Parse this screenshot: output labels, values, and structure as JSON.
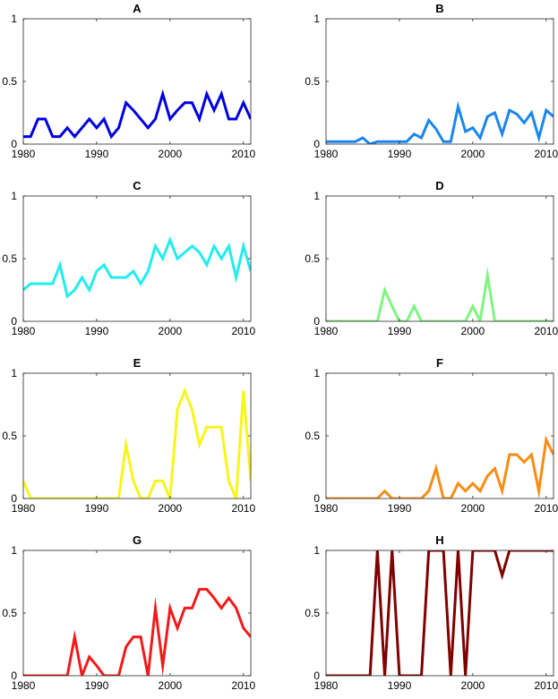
{
  "chart_data": [
    {
      "type": "line",
      "title": "A",
      "color": "#0000e0",
      "x": [
        1980,
        1981,
        1982,
        1983,
        1984,
        1985,
        1986,
        1987,
        1988,
        1989,
        1990,
        1991,
        1992,
        1993,
        1994,
        1995,
        1996,
        1997,
        1998,
        1999,
        2000,
        2001,
        2002,
        2003,
        2004,
        2005,
        2006,
        2007,
        2008,
        2009,
        2010,
        2011
      ],
      "values": [
        0.06,
        0.06,
        0.2,
        0.2,
        0.06,
        0.06,
        0.13,
        0.06,
        0.13,
        0.2,
        0.13,
        0.2,
        0.06,
        0.13,
        0.33,
        0.27,
        0.2,
        0.13,
        0.2,
        0.4,
        0.2,
        0.27,
        0.33,
        0.33,
        0.2,
        0.4,
        0.27,
        0.4,
        0.2,
        0.2,
        0.33,
        0.2
      ],
      "xlim": [
        1980,
        2011
      ],
      "ylim": [
        0,
        1
      ],
      "xticks": [
        1980,
        1990,
        2000,
        2010
      ],
      "yticks": [
        0,
        0.5,
        1
      ],
      "ytick_labels": [
        "0",
        "0.5",
        "1"
      ]
    },
    {
      "type": "line",
      "title": "B",
      "color": "#1a86ee",
      "x": [
        1980,
        1981,
        1982,
        1983,
        1984,
        1985,
        1986,
        1987,
        1988,
        1989,
        1990,
        1991,
        1992,
        1993,
        1994,
        1995,
        1996,
        1997,
        1998,
        1999,
        2000,
        2001,
        2002,
        2003,
        2004,
        2005,
        2006,
        2007,
        2008,
        2009,
        2010,
        2011
      ],
      "values": [
        0.02,
        0.02,
        0.02,
        0.02,
        0.02,
        0.05,
        0.0,
        0.02,
        0.02,
        0.02,
        0.02,
        0.02,
        0.08,
        0.05,
        0.19,
        0.12,
        0.02,
        0.02,
        0.3,
        0.1,
        0.13,
        0.05,
        0.22,
        0.25,
        0.08,
        0.27,
        0.24,
        0.17,
        0.25,
        0.05,
        0.27,
        0.22
      ],
      "xlim": [
        1980,
        2011
      ],
      "ylim": [
        0,
        1
      ],
      "xticks": [
        1980,
        1990,
        2000,
        2010
      ],
      "yticks": [
        0,
        0.5,
        1
      ],
      "ytick_labels": [
        "0",
        "0.5",
        "1"
      ]
    },
    {
      "type": "line",
      "title": "C",
      "color": "#22ecee",
      "x": [
        1980,
        1981,
        1982,
        1983,
        1984,
        1985,
        1986,
        1987,
        1988,
        1989,
        1990,
        1991,
        1992,
        1993,
        1994,
        1995,
        1996,
        1997,
        1998,
        1999,
        2000,
        2001,
        2002,
        2003,
        2004,
        2005,
        2006,
        2007,
        2008,
        2009,
        2010,
        2011
      ],
      "values": [
        0.25,
        0.3,
        0.3,
        0.3,
        0.3,
        0.45,
        0.2,
        0.25,
        0.35,
        0.25,
        0.4,
        0.45,
        0.35,
        0.35,
        0.35,
        0.4,
        0.3,
        0.4,
        0.6,
        0.5,
        0.65,
        0.5,
        0.55,
        0.6,
        0.55,
        0.45,
        0.6,
        0.5,
        0.6,
        0.35,
        0.6,
        0.4
      ],
      "xlim": [
        1980,
        2011
      ],
      "ylim": [
        0,
        1
      ],
      "xticks": [
        1980,
        1990,
        2000,
        2010
      ],
      "yticks": [
        0,
        0.5,
        1
      ],
      "ytick_labels": [
        "0",
        "0.5",
        "1"
      ]
    },
    {
      "type": "line",
      "title": "D",
      "color": "#7ff57f",
      "x": [
        1980,
        1981,
        1982,
        1983,
        1984,
        1985,
        1986,
        1987,
        1988,
        1989,
        1990,
        1991,
        1992,
        1993,
        1994,
        1995,
        1996,
        1997,
        1998,
        1999,
        2000,
        2001,
        2002,
        2003,
        2004,
        2005,
        2006,
        2007,
        2008,
        2009,
        2010,
        2011
      ],
      "values": [
        0,
        0,
        0,
        0,
        0,
        0,
        0,
        0,
        0.25,
        0.12,
        0,
        0,
        0.12,
        0,
        0,
        0,
        0,
        0,
        0,
        0,
        0.12,
        0,
        0.37,
        0,
        0,
        0,
        0,
        0,
        0,
        0,
        0,
        0
      ],
      "xlim": [
        1980,
        2011
      ],
      "ylim": [
        0,
        1
      ],
      "xticks": [
        1980,
        1990,
        2000,
        2010
      ],
      "yticks": [
        0,
        0.5,
        1
      ],
      "ytick_labels": [
        "0",
        "0.5",
        "1"
      ]
    },
    {
      "type": "line",
      "title": "E",
      "color": "#f7f51a",
      "x": [
        1980,
        1981,
        1982,
        1983,
        1984,
        1985,
        1986,
        1987,
        1988,
        1989,
        1990,
        1991,
        1992,
        1993,
        1994,
        1995,
        1996,
        1997,
        1998,
        1999,
        2000,
        2001,
        2002,
        2003,
        2004,
        2005,
        2006,
        2007,
        2008,
        2009,
        2010,
        2011
      ],
      "values": [
        0.14,
        0,
        0,
        0,
        0,
        0,
        0,
        0,
        0,
        0,
        0,
        0,
        0,
        0,
        0.43,
        0.14,
        0,
        0,
        0.14,
        0.14,
        0,
        0.71,
        0.86,
        0.71,
        0.43,
        0.57,
        0.57,
        0.57,
        0.14,
        0,
        0.86,
        0.14
      ],
      "xlim": [
        1980,
        2011
      ],
      "ylim": [
        0,
        1
      ],
      "xticks": [
        1980,
        1990,
        2000,
        2010
      ],
      "yticks": [
        0,
        0.5,
        1
      ],
      "ytick_labels": [
        "0",
        "0.5",
        "1"
      ]
    },
    {
      "type": "line",
      "title": "F",
      "color": "#f78d12",
      "x": [
        1980,
        1981,
        1982,
        1983,
        1984,
        1985,
        1986,
        1987,
        1988,
        1989,
        1990,
        1991,
        1992,
        1993,
        1994,
        1995,
        1996,
        1997,
        1998,
        1999,
        2000,
        2001,
        2002,
        2003,
        2004,
        2005,
        2006,
        2007,
        2008,
        2009,
        2010,
        2011
      ],
      "values": [
        0,
        0,
        0,
        0,
        0,
        0,
        0,
        0,
        0.06,
        0,
        0,
        0,
        0,
        0,
        0.06,
        0.24,
        0,
        0,
        0.12,
        0.06,
        0.12,
        0.06,
        0.18,
        0.24,
        0.06,
        0.35,
        0.35,
        0.29,
        0.35,
        0.06,
        0.47,
        0.35
      ],
      "xlim": [
        1980,
        2011
      ],
      "ylim": [
        0,
        1
      ],
      "xticks": [
        1980,
        1990,
        2000,
        2010
      ],
      "yticks": [
        0,
        0.5,
        1
      ],
      "ytick_labels": [
        "0",
        "0.5",
        "1"
      ]
    },
    {
      "type": "line",
      "title": "G",
      "color": "#f21a1a",
      "x": [
        1980,
        1981,
        1982,
        1983,
        1984,
        1985,
        1986,
        1987,
        1988,
        1989,
        1990,
        1991,
        1992,
        1993,
        1994,
        1995,
        1996,
        1997,
        1998,
        1999,
        2000,
        2001,
        2002,
        2003,
        2004,
        2005,
        2006,
        2007,
        2008,
        2009,
        2010,
        2011
      ],
      "values": [
        0,
        0,
        0,
        0,
        0,
        0,
        0,
        0.31,
        0,
        0.15,
        0.08,
        0,
        0,
        0,
        0.23,
        0.31,
        0.31,
        0,
        0.54,
        0.08,
        0.54,
        0.38,
        0.54,
        0.54,
        0.69,
        0.69,
        0.62,
        0.54,
        0.62,
        0.54,
        0.38,
        0.31
      ],
      "xlim": [
        1980,
        2011
      ],
      "ylim": [
        0,
        1
      ],
      "xticks": [
        1980,
        1990,
        2000,
        2010
      ],
      "yticks": [
        0,
        0.5,
        1
      ],
      "ytick_labels": [
        "0",
        "0.5",
        "1"
      ]
    },
    {
      "type": "line",
      "title": "H",
      "color": "#800000",
      "x": [
        1980,
        1981,
        1982,
        1983,
        1984,
        1985,
        1986,
        1987,
        1988,
        1989,
        1990,
        1991,
        1992,
        1993,
        1994,
        1995,
        1996,
        1997,
        1998,
        1999,
        2000,
        2001,
        2002,
        2003,
        2004,
        2005,
        2006,
        2007,
        2008,
        2009,
        2010,
        2011
      ],
      "values": [
        0,
        0,
        0,
        0,
        0,
        0,
        0,
        1,
        0,
        1,
        0,
        0,
        0,
        0,
        1,
        1,
        1,
        0,
        1,
        0,
        1,
        1,
        1,
        1,
        0.8,
        1,
        1,
        1,
        1,
        1,
        1,
        1
      ],
      "xlim": [
        1980,
        2011
      ],
      "ylim": [
        0,
        1
      ],
      "xticks": [
        1980,
        1990,
        2000,
        2010
      ],
      "yticks": [
        0,
        0.5,
        1
      ],
      "ytick_labels": [
        "0",
        "0.5",
        "1"
      ]
    }
  ]
}
